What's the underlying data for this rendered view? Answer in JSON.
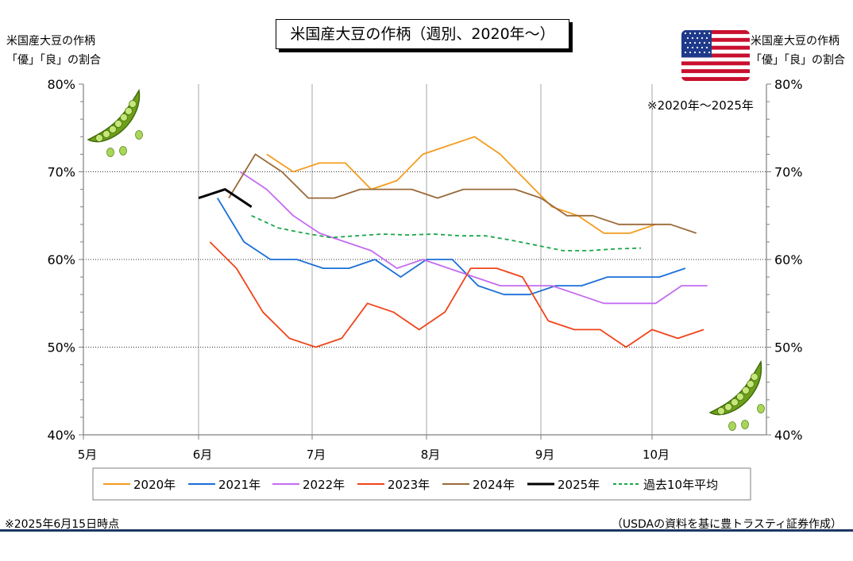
{
  "title": "米国産大豆の作柄（週別、2020年〜）",
  "left_axis_label": [
    "米国産大豆の作柄",
    "「優」「良」の割合"
  ],
  "right_axis_label": [
    "米国産大豆の作柄",
    "「優」「良」の割合"
  ],
  "period_note": "※2020年〜2025年",
  "date_note": "※2025年6月15日時点",
  "source_note": "（USDAの資料を基に豊トラスティ証券作成）",
  "icons": {
    "beans_top_left": "edamame-pod-icon",
    "beans_bottom_right": "edamame-pod-icon",
    "flag": "us-flag-icon"
  },
  "colors": {
    "2020年": "#f39c1f",
    "2021年": "#1a6fd8",
    "2022年": "#c46cf0",
    "2023年": "#f0441a",
    "2024年": "#9a6a3a",
    "2025年": "#000000",
    "過去10年平均": "#1aa64a"
  },
  "chart_data": {
    "type": "line",
    "x_tick_labels": [
      "5月",
      "6月",
      "7月",
      "8月",
      "9月",
      "10月"
    ],
    "y_tick_labels": [
      "40%",
      "50%",
      "60%",
      "70%",
      "80%"
    ],
    "ylim": [
      40,
      80
    ],
    "grid": true,
    "legend_position": "bottom",
    "series": [
      {
        "name": "2020年",
        "x": [
          "06-12",
          "06-19",
          "06-26",
          "07-03",
          "07-10",
          "07-17",
          "07-24",
          "07-31",
          "08-07",
          "08-14",
          "08-21",
          "08-28",
          "09-04",
          "09-11",
          "09-18",
          "09-25",
          "10-02"
        ],
        "values": [
          null,
          72,
          70,
          71,
          71,
          68,
          69,
          72,
          73,
          74,
          72,
          69,
          66,
          65,
          63,
          63,
          64
        ]
      },
      {
        "name": "2021年",
        "x": [
          "06-06",
          "06-13",
          "06-20",
          "06-27",
          "07-04",
          "07-11",
          "07-18",
          "07-25",
          "08-01",
          "08-08",
          "08-15",
          "08-22",
          "08-29",
          "09-05",
          "09-12",
          "09-19",
          "09-26",
          "10-03",
          "10-10"
        ],
        "values": [
          67,
          62,
          60,
          60,
          59,
          59,
          60,
          58,
          60,
          60,
          57,
          56,
          56,
          57,
          57,
          58,
          58,
          58,
          59
        ]
      },
      {
        "name": "2022年",
        "x": [
          "06-12",
          "06-19",
          "06-26",
          "07-03",
          "07-10",
          "07-17",
          "07-24",
          "07-31",
          "08-07",
          "08-14",
          "08-21",
          "08-28",
          "09-04",
          "09-11",
          "09-18",
          "09-25",
          "10-02",
          "10-09",
          "10-16"
        ],
        "values": [
          70,
          68,
          65,
          63,
          62,
          61,
          59,
          60,
          59,
          58,
          57,
          57,
          57,
          56,
          55,
          55,
          55,
          57,
          57
        ]
      },
      {
        "name": "2023年",
        "x": [
          "06-04",
          "06-11",
          "06-18",
          "06-25",
          "07-02",
          "07-09",
          "07-16",
          "07-23",
          "07-30",
          "08-06",
          "08-13",
          "08-20",
          "08-27",
          "09-03",
          "09-10",
          "09-17",
          "09-24",
          "10-01",
          "10-08",
          "10-15"
        ],
        "values": [
          62,
          59,
          54,
          51,
          50,
          51,
          55,
          54,
          52,
          54,
          59,
          59,
          58,
          53,
          52,
          52,
          50,
          52,
          51,
          52
        ]
      },
      {
        "name": "2024年",
        "x": [
          "06-09",
          "06-16",
          "06-23",
          "06-30",
          "07-07",
          "07-14",
          "07-21",
          "07-28",
          "08-04",
          "08-11",
          "08-18",
          "08-25",
          "09-01",
          "09-08",
          "09-15",
          "09-22",
          "09-29",
          "10-06",
          "10-13"
        ],
        "values": [
          67,
          72,
          70,
          67,
          67,
          68,
          68,
          68,
          67,
          68,
          68,
          68,
          67,
          65,
          65,
          64,
          64,
          64,
          63
        ]
      },
      {
        "name": "2025年",
        "x": [
          "06-01",
          "06-08",
          "06-15"
        ],
        "values": [
          67,
          68,
          66
        ]
      },
      {
        "name": "過去10年平均",
        "x": [
          "06-15",
          "06-22",
          "06-29",
          "07-06",
          "07-13",
          "07-20",
          "07-27",
          "08-03",
          "08-10",
          "08-17",
          "08-24",
          "08-31",
          "09-07",
          "09-14",
          "09-21",
          "09-28",
          "10-05"
        ],
        "values": [
          65,
          63.6,
          63,
          62.5,
          62.7,
          62.9,
          62.8,
          62.9,
          62.7,
          62.7,
          62.2,
          61.6,
          61,
          61,
          61.2,
          61.3,
          null
        ]
      }
    ]
  }
}
